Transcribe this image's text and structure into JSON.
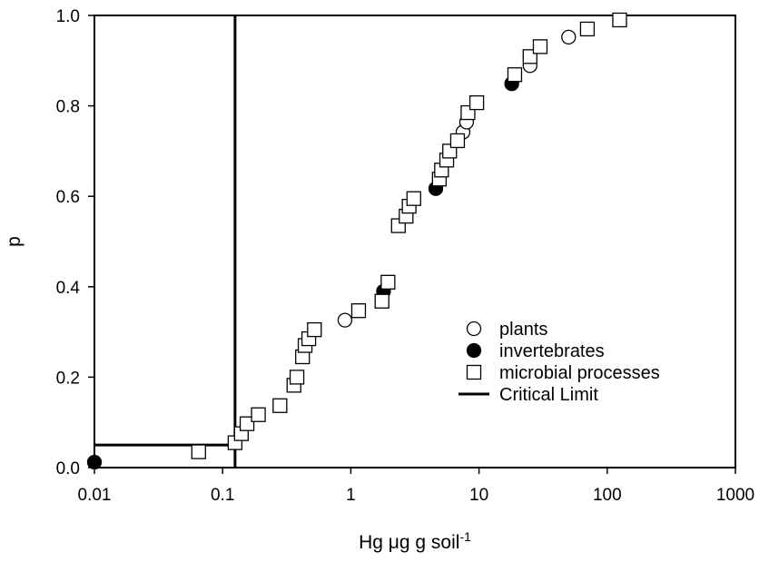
{
  "chart_data": {
    "type": "scatter",
    "x_scale": "log",
    "xlim": [
      0.01,
      1000
    ],
    "ylim": [
      0.0,
      1.0
    ],
    "x_ticks": [
      {
        "value": 0.01,
        "label": "0.01"
      },
      {
        "value": 0.1,
        "label": "0.1"
      },
      {
        "value": 1,
        "label": "1"
      },
      {
        "value": 10,
        "label": "10"
      },
      {
        "value": 100,
        "label": "100"
      },
      {
        "value": 1000,
        "label": "1000"
      }
    ],
    "y_ticks": [
      {
        "value": 0.0,
        "label": "0.0"
      },
      {
        "value": 0.2,
        "label": "0.2"
      },
      {
        "value": 0.4,
        "label": "0.4"
      },
      {
        "value": 0.6,
        "label": "0.6"
      },
      {
        "value": 0.8,
        "label": "0.8"
      },
      {
        "value": 1.0,
        "label": "1.0"
      }
    ],
    "xlabel": {
      "main": "Hg ",
      "mu": "μ",
      "rest": "g g soil",
      "sup": "-1"
    },
    "ylabel": "p",
    "grid": false,
    "legend_position": "bottom-right",
    "series": [
      {
        "name": "plants",
        "marker": "open-circle",
        "points": [
          [
            0.9,
            0.326
          ],
          [
            7.5,
            0.742
          ],
          [
            8.0,
            0.764
          ],
          [
            25,
            0.889
          ],
          [
            50,
            0.952
          ]
        ]
      },
      {
        "name": "invertebrates",
        "marker": "filled-circle",
        "points": [
          [
            0.01,
            0.012
          ],
          [
            1.8,
            0.39
          ],
          [
            4.6,
            0.617
          ],
          [
            18,
            0.849
          ]
        ]
      },
      {
        "name": "microbial processes",
        "marker": "open-square",
        "points": [
          [
            0.065,
            0.035
          ],
          [
            0.125,
            0.055
          ],
          [
            0.14,
            0.075
          ],
          [
            0.155,
            0.097
          ],
          [
            0.19,
            0.117
          ],
          [
            0.28,
            0.137
          ],
          [
            0.36,
            0.182
          ],
          [
            0.38,
            0.2
          ],
          [
            0.42,
            0.245
          ],
          [
            0.44,
            0.27
          ],
          [
            0.47,
            0.285
          ],
          [
            0.52,
            0.305
          ],
          [
            1.15,
            0.347
          ],
          [
            1.75,
            0.368
          ],
          [
            1.95,
            0.41
          ],
          [
            2.35,
            0.535
          ],
          [
            2.7,
            0.556
          ],
          [
            2.85,
            0.578
          ],
          [
            3.1,
            0.595
          ],
          [
            4.9,
            0.638
          ],
          [
            5.1,
            0.658
          ],
          [
            5.6,
            0.68
          ],
          [
            5.9,
            0.7
          ],
          [
            6.8,
            0.723
          ],
          [
            8.2,
            0.785
          ],
          [
            9.6,
            0.807
          ],
          [
            19,
            0.869
          ],
          [
            25,
            0.909
          ],
          [
            30,
            0.931
          ],
          [
            70,
            0.97
          ],
          [
            125,
            0.99
          ]
        ]
      }
    ],
    "critical_limit": {
      "name": "Critical Limit",
      "x": 0.125,
      "y": 0.05
    }
  }
}
